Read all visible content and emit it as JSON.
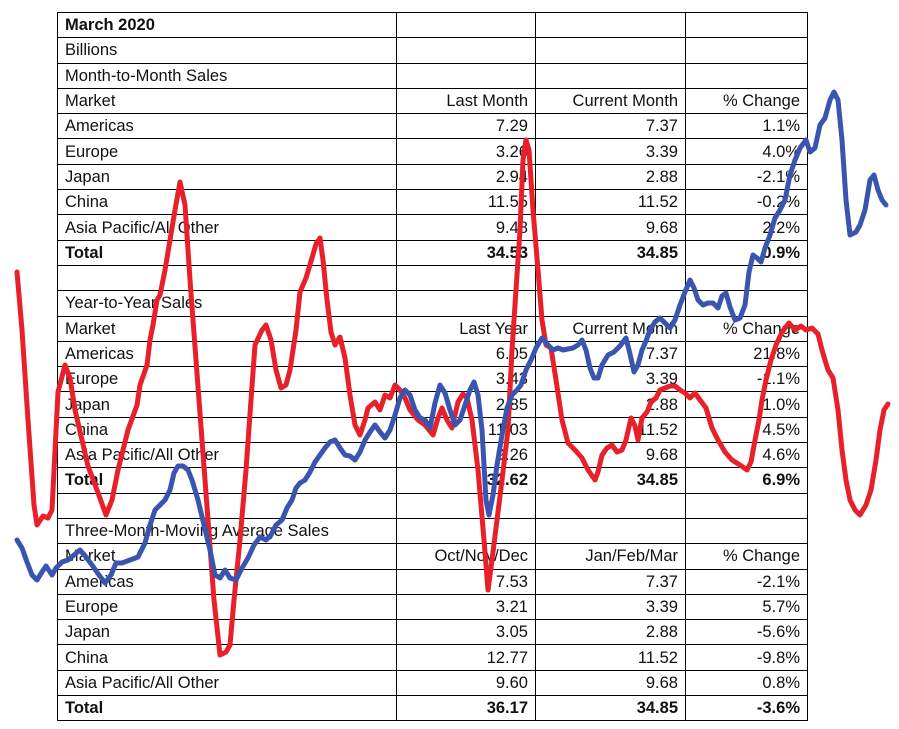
{
  "title": "March 2020",
  "unit": "Billions",
  "sections": [
    {
      "heading": "Month-to-Month Sales",
      "columns": [
        "Market",
        "Last Month",
        "Current Month",
        "% Change"
      ],
      "rows": [
        [
          "Americas",
          "7.29",
          "7.37",
          "1.1%"
        ],
        [
          "Europe",
          "3.26",
          "3.39",
          "4.0%"
        ],
        [
          "Japan",
          "2.94",
          "2.88",
          "-2.1%"
        ],
        [
          "China",
          "11.55",
          "11.52",
          "-0.2%"
        ],
        [
          "Asia Pacific/All Other",
          "9.48",
          "9.68",
          "2.2%"
        ]
      ],
      "total": [
        "Total",
        "34.53",
        "34.85",
        "0.9%"
      ]
    },
    {
      "heading": "Year-to-Year Sales",
      "columns": [
        "Market",
        "Last Year",
        "Current Month",
        "% Change"
      ],
      "rows": [
        [
          "Americas",
          "6.05",
          "7.37",
          "21.8%"
        ],
        [
          "Europe",
          "3.43",
          "3.39",
          "-1.1%"
        ],
        [
          "Japan",
          "2.85",
          "2.88",
          "1.0%"
        ],
        [
          "China",
          "11.03",
          "11.52",
          "4.5%"
        ],
        [
          "Asia Pacific/All Other",
          "9.26",
          "9.68",
          "4.6%"
        ]
      ],
      "total": [
        "Total",
        "32.62",
        "34.85",
        "6.9%"
      ]
    },
    {
      "heading": "Three-Month-Moving Average Sales",
      "columns": [
        "Market",
        "Oct/Nov/Dec",
        "Jan/Feb/Mar",
        "% Change"
      ],
      "rows": [
        [
          "Americas",
          "7.53",
          "7.37",
          "-2.1%"
        ],
        [
          "Europe",
          "3.21",
          "3.39",
          "5.7%"
        ],
        [
          "Japan",
          "3.05",
          "2.88",
          "-5.6%"
        ],
        [
          "China",
          "12.77",
          "11.52",
          "-9.8%"
        ],
        [
          "Asia Pacific/All Other",
          "9.60",
          "9.68",
          "0.8%"
        ]
      ],
      "total": [
        "Total",
        "36.17",
        "34.85",
        "-3.6%"
      ]
    }
  ],
  "overlay": {
    "red_line_color": "#e8202a",
    "blue_line_color": "#3a55b0"
  }
}
